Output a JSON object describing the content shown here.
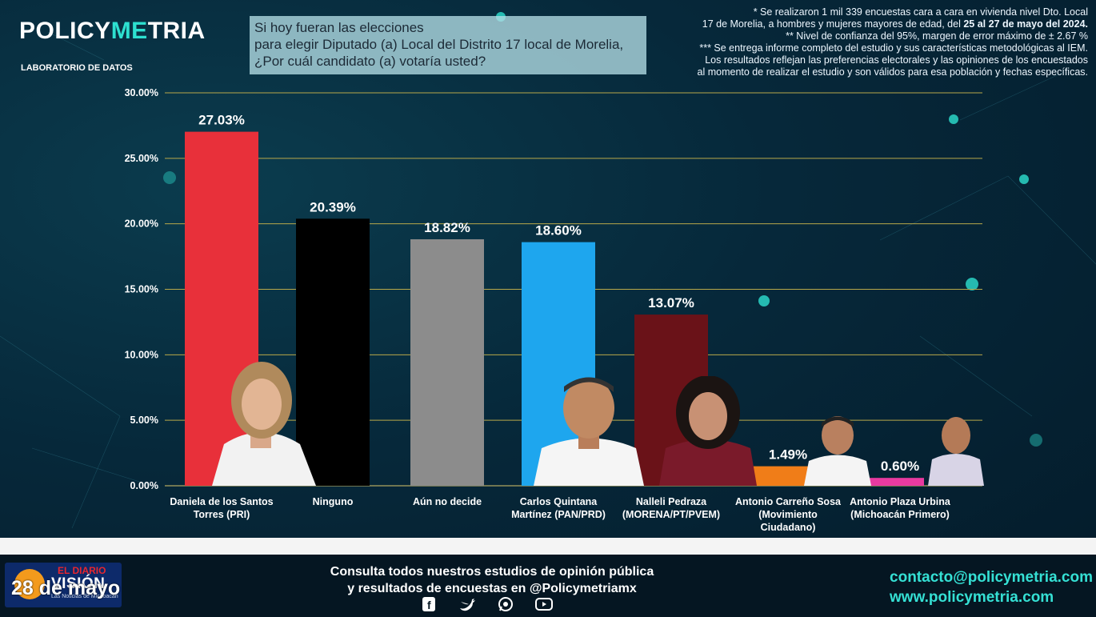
{
  "brand": {
    "logo_left": "POLICY",
    "logo_accent": "ME",
    "logo_right": "TRIA",
    "tagline": "LABORATORIO DE DATOS"
  },
  "question": {
    "line1": "Si hoy fueran las elecciones",
    "line2": "para elegir Diputado (a) Local del Distrito 17 local de Morelia,",
    "line3": "¿Por cuál candidato (a) votaría usted?"
  },
  "notes": {
    "n1a": "* Se realizaron 1 mil 339 encuestas cara a cara en vivienda nivel Dto. Local",
    "n1b": "17 de Morelia, a hombres y mujeres mayores de edad, del",
    "n1bold": "25 al 27 de mayo del 2024.",
    "n2": "** Nivel de confianza del 95%, margen de error máximo de ± 2.67 %",
    "n3a": "*** Se entrega informe completo del estudio y sus características metodológicas al IEM.",
    "n3b": "Los resultados reflejan las preferencias electorales y las opiniones de los encuestados",
    "n3c": "al momento de realizar el estudio y son válidos para esa población y fechas específicas."
  },
  "chart_data": {
    "type": "bar",
    "ylim": [
      0,
      30
    ],
    "yticks": [
      "0.00%",
      "5.00%",
      "10.00%",
      "15.00%",
      "20.00%",
      "25.00%",
      "30.00%"
    ],
    "grid": true,
    "categories": [
      [
        "Daniela de los Santos",
        "Torres (PRI)"
      ],
      [
        "Ninguno"
      ],
      [
        "Aún no decide"
      ],
      [
        "Carlos Quintana",
        "Martínez (PAN/PRD)"
      ],
      [
        "Nalleli Pedraza",
        "(MORENA/PT/PVEM)"
      ],
      [
        "Antonio Carreño Sosa",
        "(Movimiento",
        "Ciudadano)"
      ],
      [
        "Antonio Plaza Urbina",
        "(Michoacán Primero)"
      ]
    ],
    "values": [
      27.03,
      20.39,
      18.82,
      18.6,
      13.07,
      1.49,
      0.6
    ],
    "labels": [
      "27.03%",
      "20.39%",
      "18.82%",
      "18.60%",
      "13.07%",
      "1.49%",
      "0.60%"
    ],
    "colors": [
      "#e8303a",
      "#000000",
      "#8c8c8c",
      "#1ea6ee",
      "#6a1218",
      "#f07d18",
      "#e93aa0"
    ]
  },
  "footer": {
    "consulta_line1": "Consulta todos nuestros estudios de opinión pública",
    "consulta_line2": "y resultados de encuestas en @Policymetriamx",
    "email": "contacto@policymetria.com",
    "web": "www.policymetria.com",
    "social_icons": [
      "facebook-icon",
      "twitter-icon",
      "whatsapp-icon",
      "youtube-icon"
    ]
  },
  "badge": {
    "line1": "EL DIARIO",
    "line2": "VISIÓN",
    "line3": "Las Noticias de Michoacán",
    "date": "28 de mayo"
  }
}
